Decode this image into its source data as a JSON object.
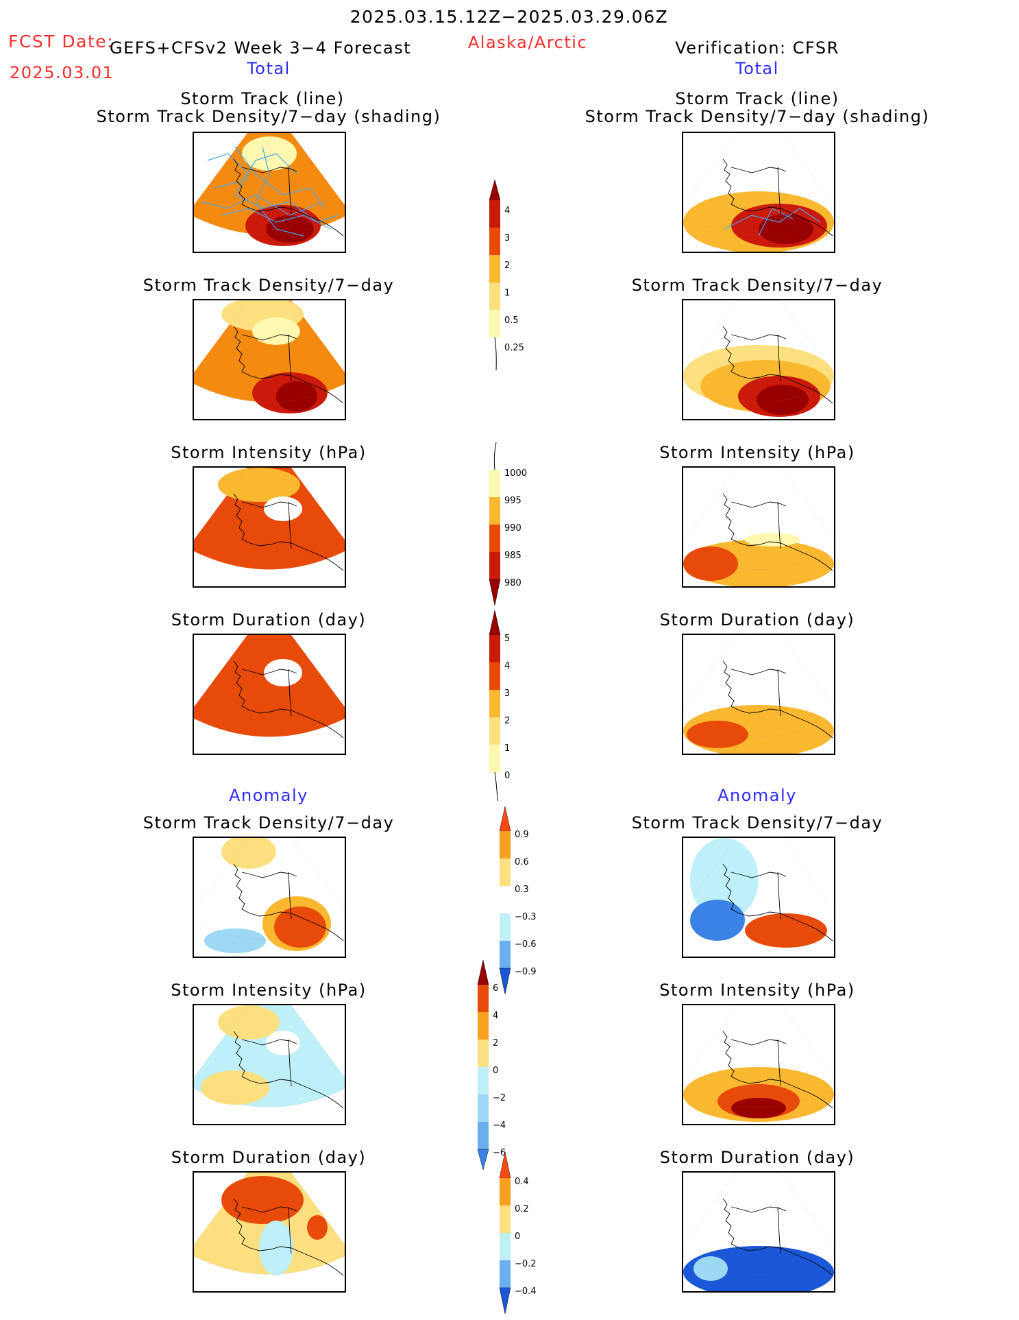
{
  "header": {
    "date_range": "2025.03.15.12Z−2025.03.29.06Z",
    "fcst_date_label": "FCST Date:",
    "fcst_date": "2025.03.01",
    "model": "GEFS+CFSv2 Week 3−4 Forecast",
    "region": "Alaska/Arctic",
    "verification": "Verification: CFSR"
  },
  "sections": {
    "total": "Total",
    "anomaly": "Anomaly"
  },
  "panel_titles": {
    "track_line": "Storm Track (line)",
    "track_density_shading": "Storm Track Density/7−day (shading)",
    "track_density": "Storm Track Density/7−day",
    "intensity": "Storm Intensity (hPa)",
    "duration": "Storm Duration (day)"
  },
  "colorbars": {
    "density": [
      "4",
      "3",
      "2",
      "1",
      "0.5",
      "0.25"
    ],
    "intensity": [
      "1000",
      "995",
      "990",
      "985",
      "980"
    ],
    "duration": [
      "5",
      "4",
      "3",
      "2",
      "1",
      "0"
    ],
    "density_anom": [
      "0.9",
      "0.6",
      "0.3",
      "−0.3",
      "−0.6",
      "−0.9"
    ],
    "intensity_anom": [
      "6",
      "4",
      "2",
      "0",
      "−2",
      "−4",
      "−6"
    ],
    "duration_anom": [
      "0.4",
      "0.2",
      "0",
      "−0.2",
      "−0.4"
    ]
  },
  "colors": {
    "warm": [
      "#fff8b0",
      "#fce080",
      "#f9b830",
      "#f58a10",
      "#e84a0a",
      "#cc1a0a",
      "#990000"
    ],
    "cool": [
      "#bff0f8",
      "#9dd8f5",
      "#6aaef0",
      "#3a82e6",
      "#1a58d8"
    ],
    "header_red": "#ff2a2a",
    "header_blue": "#2b2bff"
  }
}
